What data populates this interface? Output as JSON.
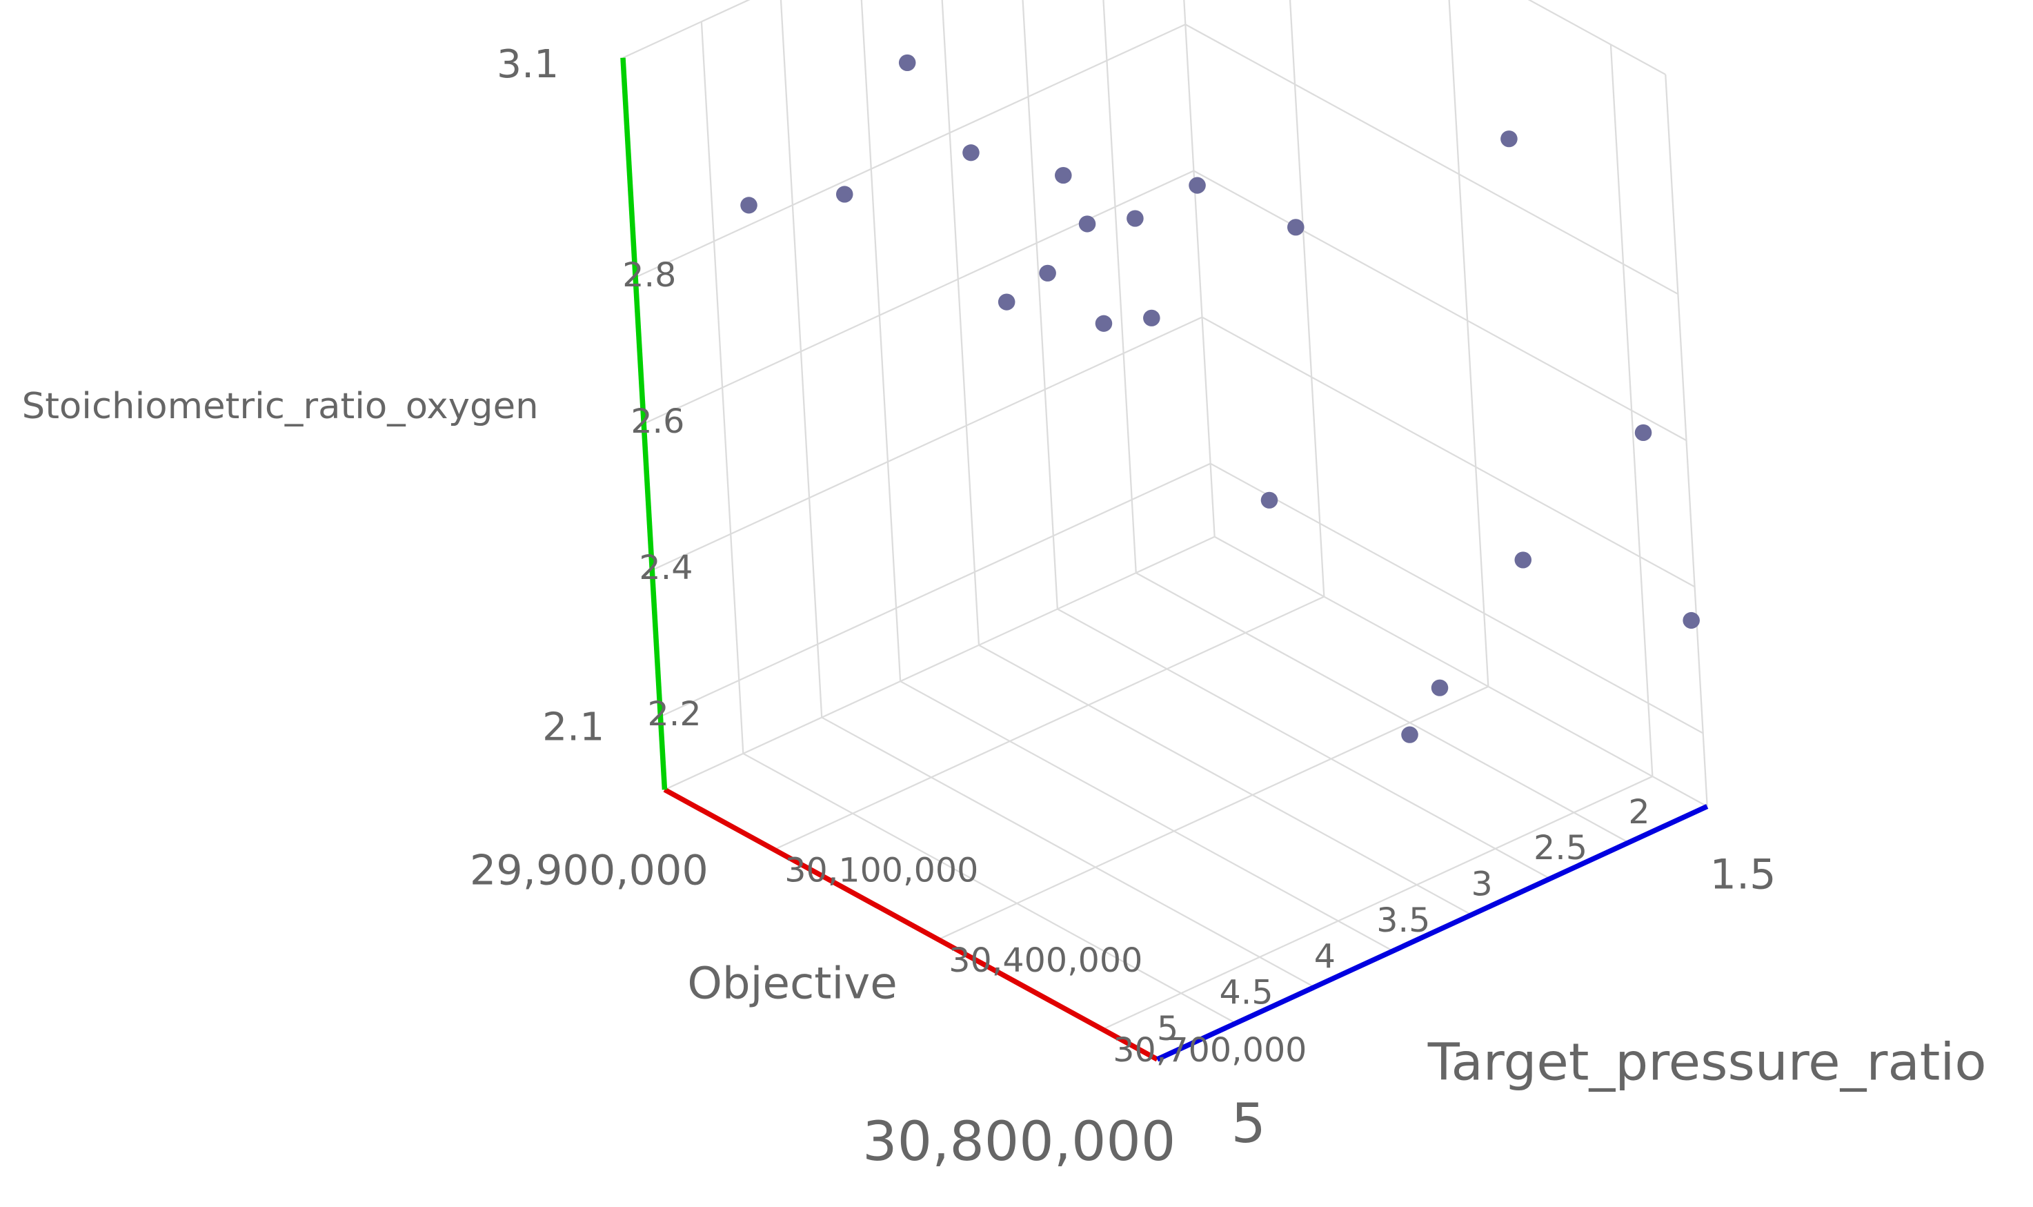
{
  "chart_data": {
    "type": "scatter3d",
    "x_label": "Objective",
    "y_label": "Target_pressure_ratio",
    "z_label": "Stoichiometric_ratio_oxygen",
    "x": [
      30000000,
      30060000,
      30010000,
      30090000,
      30140000,
      30180000,
      30210000,
      30270000,
      30360000,
      30650000,
      30050000,
      30100000,
      30170000,
      30200000,
      30750000,
      30220000,
      30540000,
      30790000,
      30430000,
      30490000
    ],
    "y": [
      4.6,
      4.2,
      3.6,
      3.5,
      3.1,
      3.1,
      2.9,
      2.7,
      2.4,
      2.0,
      3.2,
      3.1,
      3.0,
      2.8,
      1.6,
      2.2,
      1.7,
      1.5,
      1.9,
      2.3
    ],
    "z": [
      2.9,
      2.9,
      3.0,
      2.9,
      2.85,
      2.8,
      2.8,
      2.85,
      2.8,
      3.0,
      2.65,
      2.7,
      2.65,
      2.65,
      2.6,
      2.35,
      2.35,
      2.35,
      2.15,
      2.15
    ],
    "color": "#6b6b9a",
    "xlim": [
      {
        "value": 29900000,
        "label": "29,900,000"
      },
      {
        "value": 30800000,
        "label": "30,800,000"
      }
    ],
    "ylim": [
      1.5,
      5
    ],
    "zlim": [
      2.1,
      3.1
    ],
    "xticks": [
      {
        "value": 30100000,
        "label": "30,100,000"
      },
      {
        "value": 30400000,
        "label": "30,400,000"
      },
      {
        "value": 30700000,
        "label": "30,700,000"
      }
    ],
    "yticks": [
      2,
      2.5,
      3,
      3.5,
      4,
      4.5,
      5
    ],
    "zticks": [
      2.2,
      2.4,
      2.6,
      2.8
    ],
    "grid": true,
    "x_axis_color": "#e00000",
    "y_axis_color": "#0000e0",
    "z_axis_color": "#00d000"
  }
}
